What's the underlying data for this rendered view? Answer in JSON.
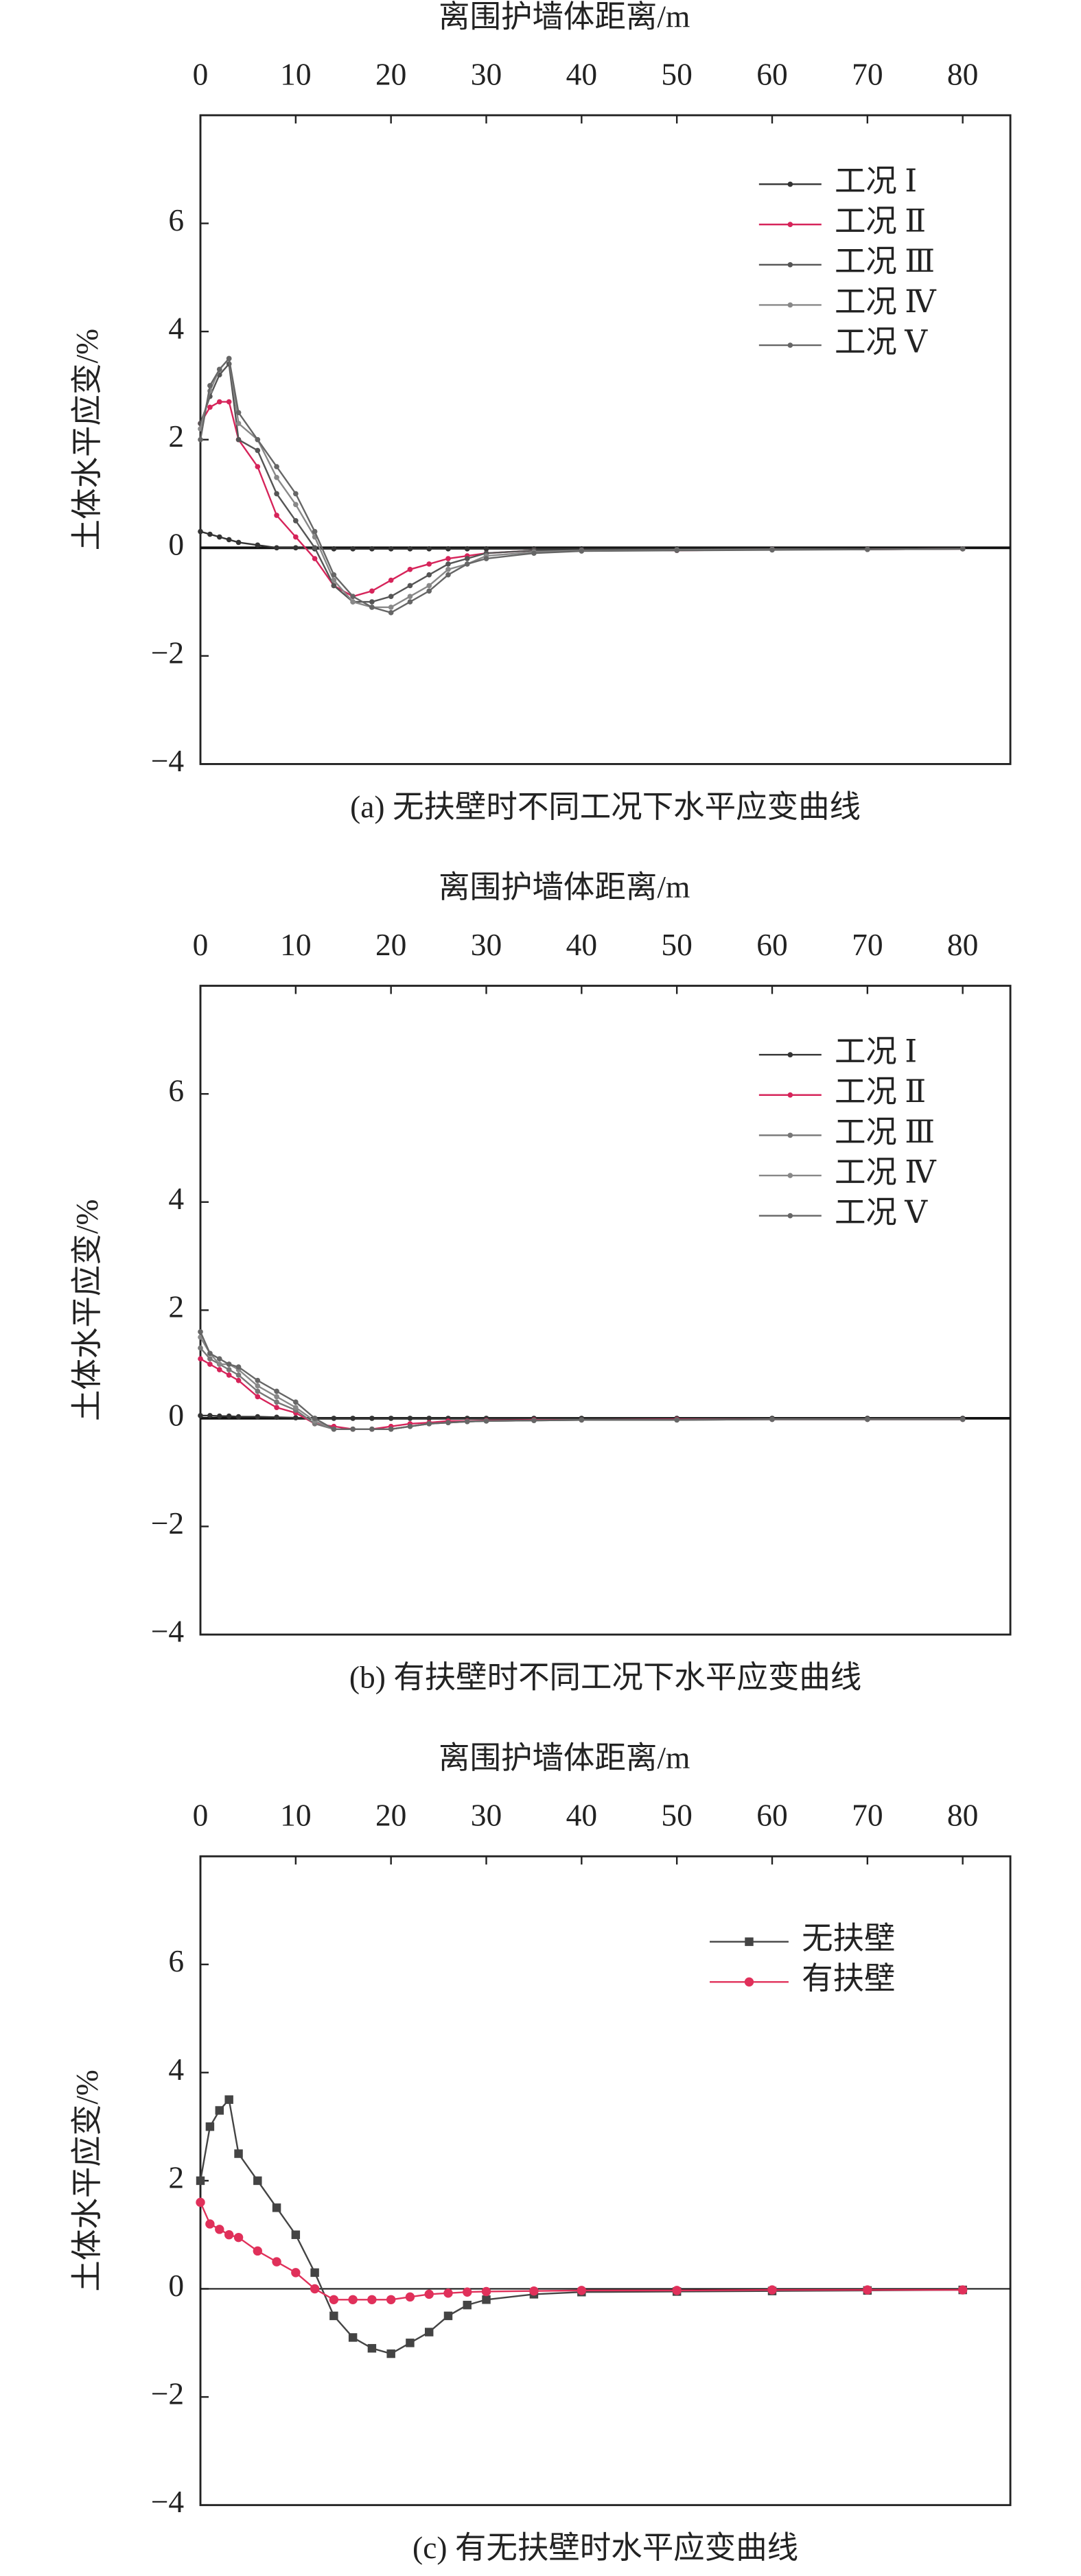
{
  "chart_data": [
    {
      "type": "line",
      "xlabel": "离围护墙体距离/m",
      "ylabel": "土体水平应变/%",
      "caption": "(a) 无扶壁时不同工况下水平应变曲线",
      "x": [
        0,
        1,
        2,
        3,
        4,
        6,
        8,
        10,
        12,
        14,
        16,
        18,
        20,
        22,
        24,
        26,
        28,
        30,
        35,
        40,
        50,
        60,
        70,
        80
      ],
      "xlim": [
        0,
        85
      ],
      "ylim": [
        -4,
        8
      ],
      "xticks": [
        0,
        10,
        20,
        30,
        40,
        50,
        60,
        70,
        80
      ],
      "yticks": [
        {
          "value": -4,
          "label": "−4"
        },
        {
          "value": -2,
          "label": "−2"
        },
        0,
        2,
        4,
        6
      ],
      "legend": "upper right",
      "series": [
        {
          "name": "工况 Ⅰ",
          "color": "#333333",
          "marker": "circle",
          "values": [
            0.3,
            0.25,
            0.2,
            0.15,
            0.1,
            0.05,
            0,
            0,
            -0.02,
            -0.02,
            -0.02,
            -0.02,
            -0.02,
            -0.02,
            -0.02,
            -0.02,
            -0.02,
            -0.02,
            -0.02,
            -0.02,
            -0.02,
            -0.02,
            -0.02,
            -0.02
          ]
        },
        {
          "name": "工况 Ⅱ",
          "color": "#d6245a",
          "marker": "circle",
          "values": [
            2.3,
            2.6,
            2.7,
            2.7,
            2.0,
            1.5,
            0.6,
            0.2,
            -0.2,
            -0.7,
            -0.9,
            -0.8,
            -0.6,
            -0.4,
            -0.3,
            -0.2,
            -0.15,
            -0.1,
            -0.05,
            -0.05,
            -0.05,
            -0.03,
            -0.03,
            -0.02
          ]
        },
        {
          "name": "工况 Ⅲ",
          "color": "#555555",
          "marker": "circle",
          "values": [
            2.3,
            2.8,
            3.2,
            3.4,
            2.0,
            1.8,
            1.0,
            0.5,
            0,
            -0.7,
            -1.0,
            -1.0,
            -0.9,
            -0.7,
            -0.5,
            -0.3,
            -0.2,
            -0.1,
            -0.05,
            -0.05,
            -0.04,
            -0.03,
            -0.03,
            -0.02
          ]
        },
        {
          "name": "工况 Ⅳ",
          "color": "#888888",
          "marker": "circle",
          "values": [
            2.2,
            2.9,
            3.3,
            3.5,
            2.3,
            2.0,
            1.3,
            0.8,
            0.2,
            -0.6,
            -1.0,
            -1.1,
            -1.1,
            -0.9,
            -0.7,
            -0.4,
            -0.3,
            -0.15,
            -0.08,
            -0.05,
            -0.04,
            -0.03,
            -0.03,
            -0.02
          ]
        },
        {
          "name": "工况 Ⅴ",
          "color": "#666666",
          "marker": "circle",
          "values": [
            2.0,
            3.0,
            3.3,
            3.5,
            2.5,
            2.0,
            1.5,
            1.0,
            0.3,
            -0.5,
            -0.9,
            -1.1,
            -1.2,
            -1.0,
            -0.8,
            -0.5,
            -0.3,
            -0.2,
            -0.1,
            -0.06,
            -0.05,
            -0.04,
            -0.03,
            -0.02
          ]
        }
      ]
    },
    {
      "type": "line",
      "xlabel": "离围护墙体距离/m",
      "ylabel": "土体水平应变/%",
      "caption": "(b) 有扶壁时不同工况下水平应变曲线",
      "x": [
        0,
        1,
        2,
        3,
        4,
        6,
        8,
        10,
        12,
        14,
        16,
        18,
        20,
        22,
        24,
        26,
        28,
        30,
        35,
        40,
        50,
        60,
        70,
        80
      ],
      "xlim": [
        0,
        85
      ],
      "ylim": [
        -4,
        8
      ],
      "xticks": [
        0,
        10,
        20,
        30,
        40,
        50,
        60,
        70,
        80
      ],
      "yticks": [
        {
          "value": -4,
          "label": "−4"
        },
        {
          "value": -2,
          "label": "−2"
        },
        0,
        2,
        4,
        6
      ],
      "legend": "upper right",
      "series": [
        {
          "name": "工况 Ⅰ",
          "color": "#333333",
          "marker": "circle",
          "values": [
            0.05,
            0.05,
            0.04,
            0.04,
            0.03,
            0.03,
            0.02,
            0.01,
            0,
            0,
            0,
            0,
            0,
            0,
            0,
            0,
            0,
            0,
            0,
            0,
            0,
            0,
            0,
            0
          ]
        },
        {
          "name": "工况 Ⅱ",
          "color": "#d6245a",
          "marker": "circle",
          "values": [
            1.1,
            1.0,
            0.9,
            0.8,
            0.7,
            0.4,
            0.2,
            0.1,
            -0.1,
            -0.15,
            -0.2,
            -0.2,
            -0.15,
            -0.1,
            -0.08,
            -0.05,
            -0.05,
            -0.04,
            -0.03,
            -0.03,
            -0.02,
            -0.02,
            -0.02,
            -0.02
          ]
        },
        {
          "name": "工况 Ⅲ",
          "color": "#777777",
          "marker": "circle",
          "values": [
            1.3,
            1.1,
            1.0,
            0.9,
            0.8,
            0.5,
            0.3,
            0.15,
            -0.1,
            -0.2,
            -0.2,
            -0.2,
            -0.2,
            -0.15,
            -0.1,
            -0.08,
            -0.06,
            -0.05,
            -0.04,
            -0.03,
            -0.03,
            -0.02,
            -0.02,
            -0.02
          ]
        },
        {
          "name": "工况 Ⅳ",
          "color": "#888888",
          "marker": "circle",
          "values": [
            1.5,
            1.2,
            1.0,
            1.0,
            0.9,
            0.6,
            0.4,
            0.2,
            -0.05,
            -0.2,
            -0.2,
            -0.2,
            -0.2,
            -0.15,
            -0.1,
            -0.08,
            -0.06,
            -0.05,
            -0.04,
            -0.03,
            -0.03,
            -0.02,
            -0.02,
            -0.02
          ]
        },
        {
          "name": "工况 Ⅴ",
          "color": "#666666",
          "marker": "circle",
          "values": [
            1.6,
            1.2,
            1.1,
            1.0,
            0.95,
            0.7,
            0.5,
            0.3,
            0,
            -0.2,
            -0.2,
            -0.2,
            -0.2,
            -0.15,
            -0.1,
            -0.08,
            -0.06,
            -0.05,
            -0.04,
            -0.03,
            -0.03,
            -0.02,
            -0.02,
            -0.02
          ]
        }
      ]
    },
    {
      "type": "line",
      "xlabel": "离围护墙体距离/m",
      "ylabel": "土体水平应变/%",
      "caption": "(c) 有无扶壁时水平应变曲线",
      "x": [
        0,
        1,
        2,
        3,
        4,
        6,
        8,
        10,
        12,
        14,
        16,
        18,
        20,
        22,
        24,
        26,
        28,
        30,
        35,
        40,
        50,
        60,
        70,
        80
      ],
      "xlim": [
        0,
        85
      ],
      "ylim": [
        -4,
        8
      ],
      "xticks": [
        0,
        10,
        20,
        30,
        40,
        50,
        60,
        70,
        80
      ],
      "yticks": [
        {
          "value": -4,
          "label": "−4"
        },
        {
          "value": -2,
          "label": "−2"
        },
        0,
        2,
        4,
        6
      ],
      "legend": "upper right",
      "series": [
        {
          "name": "无扶壁",
          "color": "#444444",
          "marker": "square",
          "values": [
            2.0,
            3.0,
            3.3,
            3.5,
            2.5,
            2.0,
            1.5,
            1.0,
            0.3,
            -0.5,
            -0.9,
            -1.1,
            -1.2,
            -1.0,
            -0.8,
            -0.5,
            -0.3,
            -0.2,
            -0.1,
            -0.06,
            -0.05,
            -0.04,
            -0.03,
            -0.02
          ]
        },
        {
          "name": "有扶壁",
          "color": "#e0305a",
          "marker": "circle",
          "values": [
            1.6,
            1.2,
            1.1,
            1.0,
            0.95,
            0.7,
            0.5,
            0.3,
            0,
            -0.2,
            -0.2,
            -0.2,
            -0.2,
            -0.15,
            -0.1,
            -0.08,
            -0.06,
            -0.05,
            -0.04,
            -0.03,
            -0.03,
            -0.02,
            -0.02,
            -0.02
          ]
        }
      ]
    }
  ]
}
